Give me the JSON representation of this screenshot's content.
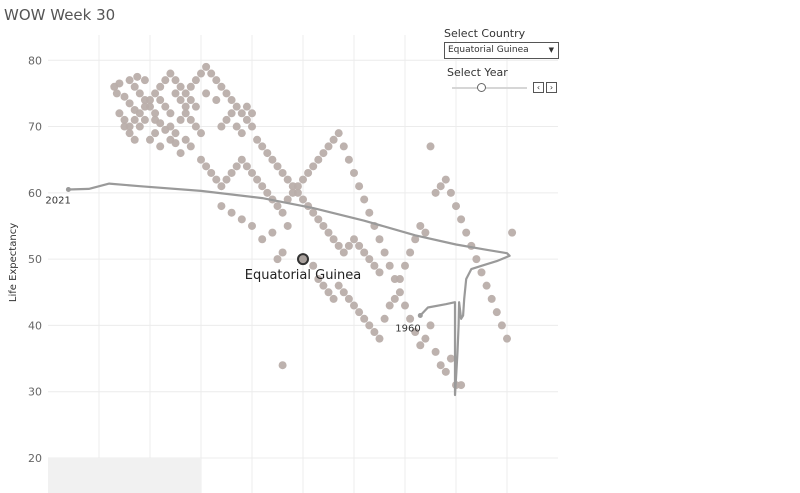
{
  "page": {
    "title": "WOW Week 30"
  },
  "controls": {
    "country_label": "Select Country",
    "country_value": "Equatorial Guinea",
    "year_label": "Select Year",
    "slider_level": 0.38,
    "prev_glyph": "‹",
    "next_glyph": "›",
    "dropdown_arrow_glyph": "▼"
  },
  "chart_data": {
    "type": "scatter",
    "ylabel": "Life Expectancy",
    "ylim": [
      20,
      82
    ],
    "yticks": [
      20,
      30,
      40,
      50,
      60,
      70,
      80
    ],
    "grid": true,
    "colors": {
      "points": "#b9aeaa",
      "trail": "#9a9a9a",
      "highlight": "#a8a09c",
      "axis_text": "#666666"
    },
    "highlight": {
      "label": "Equatorial Guinea",
      "x": 50,
      "y": 50
    },
    "trail_start_label": "1960",
    "trail_end_label": "2021",
    "trail": [
      [
        4,
        60.5
      ],
      [
        8,
        60.6
      ],
      [
        12,
        61.4
      ],
      [
        18,
        61.0
      ],
      [
        30,
        60.3
      ],
      [
        42,
        59.2
      ],
      [
        52,
        57.7
      ],
      [
        62,
        55.8
      ],
      [
        72,
        53.6
      ],
      [
        80,
        52.2
      ],
      [
        86,
        51.4
      ],
      [
        90,
        50.9
      ],
      [
        90.5,
        50.5
      ],
      [
        88,
        49.7
      ],
      [
        85,
        49.0
      ],
      [
        83,
        48.5
      ],
      [
        82,
        47.0
      ],
      [
        81.6,
        44.0
      ],
      [
        81.4,
        41.5
      ],
      [
        81.0,
        41.0
      ],
      [
        80.6,
        43.5
      ],
      [
        80.5,
        40.0
      ],
      [
        80.3,
        36.0
      ],
      [
        80.0,
        32.0
      ],
      [
        79.8,
        29.5
      ],
      [
        79.8,
        43.5
      ],
      [
        78.0,
        43.2
      ],
      [
        74.5,
        42.7
      ],
      [
        73.0,
        41.5
      ]
    ],
    "points": [
      [
        13,
        76
      ],
      [
        14,
        76.5
      ],
      [
        16,
        77
      ],
      [
        17,
        76
      ],
      [
        18,
        75
      ],
      [
        19,
        74
      ],
      [
        20,
        73
      ],
      [
        21,
        72
      ],
      [
        13.5,
        75
      ],
      [
        15,
        74.5
      ],
      [
        17.5,
        77.5
      ],
      [
        19,
        77
      ],
      [
        16,
        73.5
      ],
      [
        17,
        72.5
      ],
      [
        21,
        71
      ],
      [
        22,
        70.5
      ],
      [
        23,
        69.5
      ],
      [
        24,
        70
      ],
      [
        25,
        69
      ],
      [
        26,
        71
      ],
      [
        27,
        72
      ],
      [
        28,
        71
      ],
      [
        29,
        70
      ],
      [
        30,
        69
      ],
      [
        20,
        68
      ],
      [
        21,
        69
      ],
      [
        22,
        67
      ],
      [
        24,
        68
      ],
      [
        25,
        67.5
      ],
      [
        26,
        66
      ],
      [
        27,
        68
      ],
      [
        28,
        67
      ],
      [
        29,
        73
      ],
      [
        31,
        75
      ],
      [
        33,
        74
      ],
      [
        34,
        70
      ],
      [
        35,
        71
      ],
      [
        36,
        72
      ],
      [
        37,
        70
      ],
      [
        38,
        69
      ],
      [
        39,
        73
      ],
      [
        40,
        72
      ],
      [
        41,
        68
      ],
      [
        42,
        67
      ],
      [
        43,
        66
      ],
      [
        44,
        65
      ],
      [
        45,
        64
      ],
      [
        46,
        63
      ],
      [
        47,
        62
      ],
      [
        48,
        61
      ],
      [
        49,
        60
      ],
      [
        50,
        59
      ],
      [
        51,
        58
      ],
      [
        52,
        57
      ],
      [
        53,
        56
      ],
      [
        54,
        55
      ],
      [
        55,
        54
      ],
      [
        56,
        53
      ],
      [
        57,
        52
      ],
      [
        58,
        51
      ],
      [
        59,
        52
      ],
      [
        60,
        53
      ],
      [
        61,
        52
      ],
      [
        62,
        51
      ],
      [
        63,
        50
      ],
      [
        64,
        49
      ],
      [
        65,
        48
      ],
      [
        30,
        65
      ],
      [
        31,
        64
      ],
      [
        32,
        63
      ],
      [
        33,
        62
      ],
      [
        34,
        61
      ],
      [
        35,
        62
      ],
      [
        36,
        63
      ],
      [
        37,
        64
      ],
      [
        38,
        65
      ],
      [
        39,
        64
      ],
      [
        40,
        63
      ],
      [
        41,
        62
      ],
      [
        42,
        61
      ],
      [
        43,
        60
      ],
      [
        44,
        59
      ],
      [
        45,
        58
      ],
      [
        46,
        57
      ],
      [
        47,
        59
      ],
      [
        48,
        60
      ],
      [
        49,
        61
      ],
      [
        50,
        62
      ],
      [
        51,
        63
      ],
      [
        52,
        64
      ],
      [
        53,
        65
      ],
      [
        54,
        66
      ],
      [
        55,
        67
      ],
      [
        56,
        68
      ],
      [
        57,
        69
      ],
      [
        58,
        67
      ],
      [
        59,
        65
      ],
      [
        60,
        63
      ],
      [
        61,
        61
      ],
      [
        62,
        59
      ],
      [
        63,
        57
      ],
      [
        64,
        55
      ],
      [
        65,
        53
      ],
      [
        66,
        51
      ],
      [
        67,
        49
      ],
      [
        68,
        47
      ],
      [
        69,
        45
      ],
      [
        70,
        43
      ],
      [
        71,
        41
      ],
      [
        72,
        39
      ],
      [
        73,
        37
      ],
      [
        74,
        38
      ],
      [
        75,
        40
      ],
      [
        76,
        36
      ],
      [
        77,
        34
      ],
      [
        78,
        33
      ],
      [
        79,
        35
      ],
      [
        80,
        31
      ],
      [
        81,
        31
      ],
      [
        46,
        34
      ],
      [
        44,
        54
      ],
      [
        42,
        53
      ],
      [
        40,
        55
      ],
      [
        38,
        56
      ],
      [
        36,
        57
      ],
      [
        34,
        58
      ],
      [
        47,
        55
      ],
      [
        46,
        51
      ],
      [
        45,
        50
      ],
      [
        52,
        49
      ],
      [
        53,
        47
      ],
      [
        54,
        46
      ],
      [
        55,
        45
      ],
      [
        56,
        44
      ],
      [
        57,
        46
      ],
      [
        58,
        45
      ],
      [
        59,
        44
      ],
      [
        60,
        43
      ],
      [
        61,
        42
      ],
      [
        62,
        41
      ],
      [
        63,
        40
      ],
      [
        64,
        39
      ],
      [
        65,
        38
      ],
      [
        66,
        41
      ],
      [
        67,
        43
      ],
      [
        68,
        44
      ],
      [
        69,
        47
      ],
      [
        70,
        49
      ],
      [
        71,
        51
      ],
      [
        72,
        53
      ],
      [
        73,
        55
      ],
      [
        74,
        54
      ],
      [
        76,
        60
      ],
      [
        77,
        61
      ],
      [
        78,
        62
      ],
      [
        79,
        60
      ],
      [
        80,
        58
      ],
      [
        81,
        56
      ],
      [
        82,
        54
      ],
      [
        83,
        52
      ],
      [
        84,
        50
      ],
      [
        85,
        48
      ],
      [
        86,
        46
      ],
      [
        87,
        44
      ],
      [
        88,
        42
      ],
      [
        89,
        40
      ],
      [
        90,
        38
      ],
      [
        91,
        54
      ],
      [
        75,
        67
      ],
      [
        15,
        70
      ],
      [
        16,
        69
      ],
      [
        17,
        68
      ],
      [
        18,
        70
      ],
      [
        19,
        71
      ],
      [
        22,
        74
      ],
      [
        23,
        73
      ],
      [
        24,
        72
      ],
      [
        25,
        75
      ],
      [
        26,
        74
      ],
      [
        27,
        73
      ],
      [
        28,
        74
      ],
      [
        14,
        72
      ],
      [
        15,
        71
      ],
      [
        16,
        70
      ],
      [
        17,
        71
      ],
      [
        18,
        72
      ],
      [
        19,
        73
      ],
      [
        20,
        74
      ],
      [
        21,
        75
      ],
      [
        22,
        76
      ],
      [
        23,
        77
      ],
      [
        24,
        78
      ],
      [
        25,
        77
      ],
      [
        26,
        76
      ],
      [
        27,
        75
      ],
      [
        28,
        76
      ],
      [
        29,
        77
      ],
      [
        30,
        78
      ],
      [
        31,
        79
      ],
      [
        32,
        78
      ],
      [
        33,
        77
      ],
      [
        34,
        76
      ],
      [
        35,
        75
      ],
      [
        36,
        74
      ],
      [
        37,
        73
      ],
      [
        38,
        72
      ],
      [
        39,
        71
      ],
      [
        40,
        70
      ]
    ]
  }
}
